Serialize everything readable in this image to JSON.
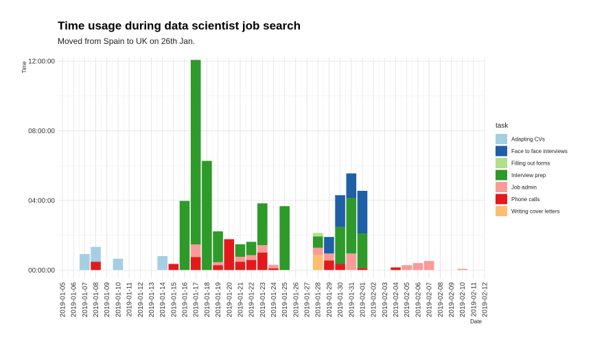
{
  "chart_data": {
    "type": "bar",
    "stacked": true,
    "title": "Time usage during data scientist job search",
    "subtitle": "Moved from Spain to UK on 26th Jan.",
    "xlabel": "Date",
    "ylabel": "Time",
    "x_ticks": [
      "2019-01-05",
      "2019-01-06",
      "2019-01-07",
      "2019-01-08",
      "2019-01-09",
      "2019-01-10",
      "2019-01-11",
      "2019-01-12",
      "2019-01-13",
      "2019-01-14",
      "2019-01-15",
      "2019-01-16",
      "2019-01-17",
      "2019-01-18",
      "2019-01-19",
      "2019-01-20",
      "2019-01-21",
      "2019-01-22",
      "2019-01-23",
      "2019-01-24",
      "2019-01-25",
      "2019-01-26",
      "2019-01-27",
      "2019-01-28",
      "2019-01-29",
      "2019-01-30",
      "2019-01-31",
      "2019-02-01",
      "2019-02-02",
      "2019-02-03",
      "2019-02-04",
      "2019-02-05",
      "2019-02-06",
      "2019-02-07",
      "2019-02-08",
      "2019-02-09",
      "2019-02-10",
      "2019-02-11",
      "2019-02-12"
    ],
    "y_ticks": [
      {
        "value": 0,
        "label": "00:00:00"
      },
      {
        "value": 4,
        "label": "04:00:00"
      },
      {
        "value": 8,
        "label": "08:00:00"
      },
      {
        "value": 12,
        "label": "12:00:00"
      }
    ],
    "ylim": [
      -0.5,
      12.2
    ],
    "y_unit": "hours",
    "legend_title": "task",
    "legend_position": "right",
    "series_order": [
      "Adapting CVs",
      "Face to face interviews",
      "Filling out forms",
      "Interview prep",
      "Job admin",
      "Phone calls",
      "Writing cover letters"
    ],
    "colors": {
      "Adapting CVs": "#a6cee3",
      "Face to face interviews": "#1f5fa6",
      "Filling out forms": "#b2df8a",
      "Interview prep": "#2e9a2a",
      "Job admin": "#fb9a99",
      "Phone calls": "#e31a1c",
      "Writing cover letters": "#fdbf6f"
    },
    "stack_order_bottom_to_top": [
      "Writing cover letters",
      "Phone calls",
      "Job admin",
      "Interview prep",
      "Filling out forms",
      "Face to face interviews",
      "Adapting CVs"
    ],
    "bars": [
      {
        "date": "2019-01-07",
        "values": {
          "Adapting CVs": 0.92
        }
      },
      {
        "date": "2019-01-08",
        "values": {
          "Phone calls": 0.48,
          "Adapting CVs": 0.85
        }
      },
      {
        "date": "2019-01-10",
        "values": {
          "Adapting CVs": 0.65
        }
      },
      {
        "date": "2019-01-14",
        "values": {
          "Adapting CVs": 0.8
        }
      },
      {
        "date": "2019-01-15",
        "values": {
          "Phone calls": 0.35
        }
      },
      {
        "date": "2019-01-16",
        "values": {
          "Interview prep": 3.97
        }
      },
      {
        "date": "2019-01-17",
        "values": {
          "Phone calls": 0.75,
          "Job admin": 0.72,
          "Interview prep": 10.6
        }
      },
      {
        "date": "2019-01-18",
        "values": {
          "Interview prep": 6.27
        }
      },
      {
        "date": "2019-01-19",
        "values": {
          "Phone calls": 0.28,
          "Job admin": 0.17,
          "Interview prep": 1.77
        }
      },
      {
        "date": "2019-01-20",
        "values": {
          "Phone calls": 1.77
        }
      },
      {
        "date": "2019-01-21",
        "values": {
          "Phone calls": 0.48,
          "Job admin": 0.28,
          "Interview prep": 0.72
        }
      },
      {
        "date": "2019-01-22",
        "values": {
          "Phone calls": 0.58,
          "Job admin": 0.27,
          "Interview prep": 0.77
        }
      },
      {
        "date": "2019-01-23",
        "values": {
          "Phone calls": 1.0,
          "Job admin": 0.43,
          "Interview prep": 2.4
        }
      },
      {
        "date": "2019-01-24",
        "values": {
          "Phone calls": 0.1,
          "Job admin": 0.2
        }
      },
      {
        "date": "2019-01-25",
        "values": {
          "Interview prep": 3.67
        }
      },
      {
        "date": "2019-01-28",
        "values": {
          "Writing cover letters": 0.88,
          "Job admin": 0.4,
          "Interview prep": 0.65,
          "Filling out forms": 0.2
        }
      },
      {
        "date": "2019-01-29",
        "values": {
          "Phone calls": 0.55,
          "Job admin": 0.4,
          "Face to face interviews": 0.95
        }
      },
      {
        "date": "2019-01-30",
        "values": {
          "Phone calls": 0.35,
          "Interview prep": 2.12,
          "Face to face interviews": 1.83
        }
      },
      {
        "date": "2019-01-31",
        "values": {
          "Job admin": 0.95,
          "Interview prep": 3.17,
          "Face to face interviews": 1.43
        }
      },
      {
        "date": "2019-02-01",
        "values": {
          "Phone calls": 0.12,
          "Interview prep": 1.98,
          "Face to face interviews": 2.45
        }
      },
      {
        "date": "2019-02-04",
        "values": {
          "Phone calls": 0.15
        }
      },
      {
        "date": "2019-02-05",
        "values": {
          "Job admin": 0.28
        }
      },
      {
        "date": "2019-02-06",
        "values": {
          "Job admin": 0.4
        }
      },
      {
        "date": "2019-02-07",
        "values": {
          "Job admin": 0.52
        }
      },
      {
        "date": "2019-02-10",
        "values": {
          "Job admin": 0.07
        }
      }
    ]
  }
}
